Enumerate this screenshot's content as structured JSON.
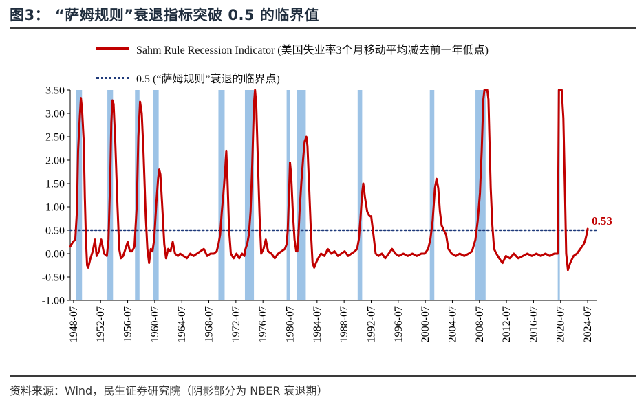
{
  "header": {
    "title": "图3： “萨姆规则”衰退指标突破 0.5 的临界值"
  },
  "footer": {
    "source": "资料来源：Wind，民生证券研究院（阴影部分为 NBER 衰退期）"
  },
  "colors": {
    "series": "#c00000",
    "threshold": "#1f3a7a",
    "recession": "#9dc3e6",
    "axis": "#000000",
    "callout": "#c00000"
  },
  "chart_data": {
    "type": "line",
    "title": "",
    "xlabel": "",
    "ylabel": "",
    "xlim": [
      "1948-01",
      "2025-12"
    ],
    "ylim": [
      -1.0,
      3.5
    ],
    "y_ticks": [
      "3.50",
      "3.00",
      "2.50",
      "2.00",
      "1.50",
      "1.00",
      "0.50",
      "0.00",
      "-0.50",
      "-1.00"
    ],
    "x_ticks": [
      "1948-07",
      "1952-07",
      "1956-07",
      "1960-07",
      "1964-07",
      "1968-07",
      "1972-07",
      "1976-07",
      "1980-07",
      "1984-07",
      "1988-07",
      "1992-07",
      "1996-07",
      "2000-07",
      "2004-07",
      "2008-07",
      "2012-07",
      "2016-07",
      "2020-07",
      "2024-07"
    ],
    "grid": false,
    "legend_position": "top",
    "legend": [
      "Sahm Rule Recession Indicator (美国失业率3个月移动平均减去前一年低点)",
      "0.5 (“萨姆规则”衰退的临界点)"
    ],
    "callout": {
      "label": "0.53",
      "date": "2024-07",
      "value": 0.53
    },
    "threshold": 0.5,
    "recessions": [
      [
        "1948-11",
        "1949-10"
      ],
      [
        "1953-07",
        "1954-05"
      ],
      [
        "1957-08",
        "1958-04"
      ],
      [
        "1960-04",
        "1961-02"
      ],
      [
        "1969-12",
        "1970-11"
      ],
      [
        "1973-11",
        "1975-03"
      ],
      [
        "1980-01",
        "1980-07"
      ],
      [
        "1981-07",
        "1982-11"
      ],
      [
        "1990-07",
        "1991-03"
      ],
      [
        "2001-03",
        "2001-11"
      ],
      [
        "2007-12",
        "2009-06"
      ],
      [
        "2020-02",
        "2020-04"
      ]
    ],
    "series": [
      {
        "name": "Sahm Rule Recession Indicator (美国失业率3个月移动平均减去前一年低点)",
        "points": [
          [
            "1948-01",
            0.15
          ],
          [
            "1948-06",
            0.25
          ],
          [
            "1948-10",
            0.3
          ],
          [
            "1949-01",
            0.9
          ],
          [
            "1949-03",
            2.2
          ],
          [
            "1949-06",
            2.9
          ],
          [
            "1949-08",
            3.33
          ],
          [
            "1949-10",
            3.1
          ],
          [
            "1950-01",
            2.4
          ],
          [
            "1950-03",
            1.2
          ],
          [
            "1950-05",
            0.3
          ],
          [
            "1950-07",
            -0.25
          ],
          [
            "1950-09",
            -0.3
          ],
          [
            "1951-01",
            -0.1
          ],
          [
            "1951-05",
            0.05
          ],
          [
            "1951-09",
            0.3
          ],
          [
            "1951-12",
            -0.05
          ],
          [
            "1952-04",
            0.05
          ],
          [
            "1952-08",
            0.3
          ],
          [
            "1953-01",
            0.0
          ],
          [
            "1953-06",
            -0.05
          ],
          [
            "1953-09",
            0.3
          ],
          [
            "1953-12",
            1.6
          ],
          [
            "1954-02",
            2.8
          ],
          [
            "1954-04",
            3.28
          ],
          [
            "1954-06",
            3.2
          ],
          [
            "1954-09",
            2.4
          ],
          [
            "1955-01",
            1.0
          ],
          [
            "1955-04",
            0.1
          ],
          [
            "1955-07",
            -0.1
          ],
          [
            "1955-11",
            -0.05
          ],
          [
            "1956-03",
            0.1
          ],
          [
            "1956-07",
            0.25
          ],
          [
            "1956-11",
            0.05
          ],
          [
            "1957-03",
            0.05
          ],
          [
            "1957-07",
            0.15
          ],
          [
            "1957-11",
            1.0
          ],
          [
            "1958-02",
            2.5
          ],
          [
            "1958-05",
            3.25
          ],
          [
            "1958-08",
            3.0
          ],
          [
            "1958-11",
            2.2
          ],
          [
            "1959-03",
            0.8
          ],
          [
            "1959-06",
            0.1
          ],
          [
            "1959-09",
            -0.2
          ],
          [
            "1959-12",
            0.1
          ],
          [
            "1960-03",
            0.05
          ],
          [
            "1960-06",
            0.3
          ],
          [
            "1960-10",
            1.1
          ],
          [
            "1961-01",
            1.6
          ],
          [
            "1961-03",
            1.8
          ],
          [
            "1961-05",
            1.7
          ],
          [
            "1961-08",
            1.1
          ],
          [
            "1961-12",
            0.2
          ],
          [
            "1962-03",
            -0.1
          ],
          [
            "1962-07",
            0.1
          ],
          [
            "1962-11",
            0.05
          ],
          [
            "1963-03",
            0.25
          ],
          [
            "1963-07",
            0.0
          ],
          [
            "1963-12",
            -0.05
          ],
          [
            "1964-04",
            0.0
          ],
          [
            "1964-10",
            -0.05
          ],
          [
            "1965-04",
            -0.1
          ],
          [
            "1965-10",
            0.0
          ],
          [
            "1966-04",
            -0.05
          ],
          [
            "1966-10",
            0.0
          ],
          [
            "1967-04",
            0.05
          ],
          [
            "1967-10",
            0.1
          ],
          [
            "1968-04",
            -0.05
          ],
          [
            "1968-10",
            0.0
          ],
          [
            "1969-04",
            0.0
          ],
          [
            "1969-09",
            0.05
          ],
          [
            "1969-12",
            0.2
          ],
          [
            "1970-03",
            0.4
          ],
          [
            "1970-06",
            0.9
          ],
          [
            "1970-09",
            1.3
          ],
          [
            "1970-12",
            1.8
          ],
          [
            "1971-02",
            2.2
          ],
          [
            "1971-04",
            1.6
          ],
          [
            "1971-07",
            0.5
          ],
          [
            "1971-10",
            0.0
          ],
          [
            "1972-03",
            -0.1
          ],
          [
            "1972-08",
            0.0
          ],
          [
            "1973-01",
            -0.1
          ],
          [
            "1973-06",
            0.0
          ],
          [
            "1973-10",
            -0.05
          ],
          [
            "1973-12",
            0.1
          ],
          [
            "1974-03",
            0.2
          ],
          [
            "1974-06",
            0.4
          ],
          [
            "1974-09",
            0.9
          ],
          [
            "1974-12",
            1.9
          ],
          [
            "1975-03",
            3.2
          ],
          [
            "1975-05",
            3.5
          ],
          [
            "1975-07",
            3.2
          ],
          [
            "1975-10",
            2.0
          ],
          [
            "1976-01",
            0.8
          ],
          [
            "1976-04",
            0.0
          ],
          [
            "1976-08",
            0.1
          ],
          [
            "1976-12",
            0.3
          ],
          [
            "1977-04",
            0.05
          ],
          [
            "1977-10",
            0.0
          ],
          [
            "1978-04",
            -0.1
          ],
          [
            "1978-10",
            0.0
          ],
          [
            "1979-04",
            0.05
          ],
          [
            "1979-10",
            0.1
          ],
          [
            "1980-01",
            0.2
          ],
          [
            "1980-03",
            0.5
          ],
          [
            "1980-05",
            1.2
          ],
          [
            "1980-07",
            1.95
          ],
          [
            "1980-09",
            1.7
          ],
          [
            "1980-12",
            0.9
          ],
          [
            "1981-03",
            0.3
          ],
          [
            "1981-06",
            0.05
          ],
          [
            "1981-08",
            0.05
          ],
          [
            "1981-10",
            0.4
          ],
          [
            "1981-12",
            0.9
          ],
          [
            "1982-03",
            1.5
          ],
          [
            "1982-06",
            2.0
          ],
          [
            "1982-09",
            2.4
          ],
          [
            "1982-12",
            2.5
          ],
          [
            "1983-02",
            2.3
          ],
          [
            "1983-05",
            1.4
          ],
          [
            "1983-08",
            0.5
          ],
          [
            "1983-11",
            -0.2
          ],
          [
            "1984-02",
            -0.3
          ],
          [
            "1984-05",
            -0.2
          ],
          [
            "1984-09",
            -0.1
          ],
          [
            "1985-02",
            0.0
          ],
          [
            "1985-08",
            -0.05
          ],
          [
            "1986-02",
            0.1
          ],
          [
            "1986-08",
            0.0
          ],
          [
            "1987-02",
            0.05
          ],
          [
            "1987-08",
            -0.05
          ],
          [
            "1988-02",
            0.0
          ],
          [
            "1988-08",
            0.05
          ],
          [
            "1989-02",
            -0.05
          ],
          [
            "1989-08",
            0.0
          ],
          [
            "1990-02",
            0.05
          ],
          [
            "1990-06",
            0.1
          ],
          [
            "1990-09",
            0.3
          ],
          [
            "1990-12",
            0.75
          ],
          [
            "1991-03",
            1.3
          ],
          [
            "1991-05",
            1.5
          ],
          [
            "1991-08",
            1.2
          ],
          [
            "1991-12",
            0.9
          ],
          [
            "1992-04",
            0.8
          ],
          [
            "1992-07",
            0.8
          ],
          [
            "1992-11",
            0.4
          ],
          [
            "1993-03",
            0.0
          ],
          [
            "1993-08",
            -0.05
          ],
          [
            "1994-02",
            0.0
          ],
          [
            "1994-08",
            -0.1
          ],
          [
            "1995-02",
            0.0
          ],
          [
            "1995-08",
            0.1
          ],
          [
            "1996-02",
            0.0
          ],
          [
            "1996-08",
            -0.05
          ],
          [
            "1997-04",
            0.0
          ],
          [
            "1997-12",
            -0.05
          ],
          [
            "1998-08",
            0.0
          ],
          [
            "1999-04",
            -0.05
          ],
          [
            "1999-12",
            0.0
          ],
          [
            "2000-06",
            0.0
          ],
          [
            "2000-12",
            0.1
          ],
          [
            "2001-04",
            0.3
          ],
          [
            "2001-08",
            0.7
          ],
          [
            "2001-12",
            1.4
          ],
          [
            "2002-03",
            1.6
          ],
          [
            "2002-06",
            1.4
          ],
          [
            "2002-09",
            0.9
          ],
          [
            "2002-12",
            0.6
          ],
          [
            "2003-04",
            0.5
          ],
          [
            "2003-08",
            0.4
          ],
          [
            "2003-12",
            0.1
          ],
          [
            "2004-06",
            0.0
          ],
          [
            "2005-01",
            -0.05
          ],
          [
            "2005-08",
            0.0
          ],
          [
            "2006-04",
            -0.05
          ],
          [
            "2006-12",
            0.0
          ],
          [
            "2007-06",
            0.05
          ],
          [
            "2007-12",
            0.3
          ],
          [
            "2008-04",
            0.7
          ],
          [
            "2008-08",
            1.3
          ],
          [
            "2008-11",
            2.2
          ],
          [
            "2009-02",
            3.3
          ],
          [
            "2009-04",
            3.5
          ],
          [
            "2009-09",
            3.5
          ],
          [
            "2009-11",
            3.3
          ],
          [
            "2010-03",
            1.4
          ],
          [
            "2010-06",
            0.6
          ],
          [
            "2010-09",
            0.1
          ],
          [
            "2011-01",
            0.0
          ],
          [
            "2011-06",
            -0.1
          ],
          [
            "2011-12",
            -0.2
          ],
          [
            "2012-06",
            -0.05
          ],
          [
            "2013-01",
            -0.1
          ],
          [
            "2013-08",
            0.0
          ],
          [
            "2014-04",
            -0.1
          ],
          [
            "2014-12",
            -0.05
          ],
          [
            "2015-08",
            0.0
          ],
          [
            "2016-04",
            -0.05
          ],
          [
            "2016-12",
            0.0
          ],
          [
            "2017-08",
            -0.05
          ],
          [
            "2018-04",
            0.0
          ],
          [
            "2018-12",
            -0.05
          ],
          [
            "2019-08",
            0.0
          ],
          [
            "2020-02",
            0.0
          ],
          [
            "2020-04",
            3.5
          ],
          [
            "2020-09",
            3.5
          ],
          [
            "2020-12",
            2.9
          ],
          [
            "2021-03",
            1.2
          ],
          [
            "2021-05",
            0.0
          ],
          [
            "2021-08",
            -0.35
          ],
          [
            "2021-12",
            -0.2
          ],
          [
            "2022-06",
            -0.05
          ],
          [
            "2022-12",
            0.0
          ],
          [
            "2023-06",
            0.1
          ],
          [
            "2023-12",
            0.2
          ],
          [
            "2024-03",
            0.3
          ],
          [
            "2024-05",
            0.4
          ],
          [
            "2024-07",
            0.53
          ]
        ]
      },
      {
        "name": "0.5 (“萨姆规则”衰退的临界点)",
        "value": 0.5
      }
    ]
  }
}
